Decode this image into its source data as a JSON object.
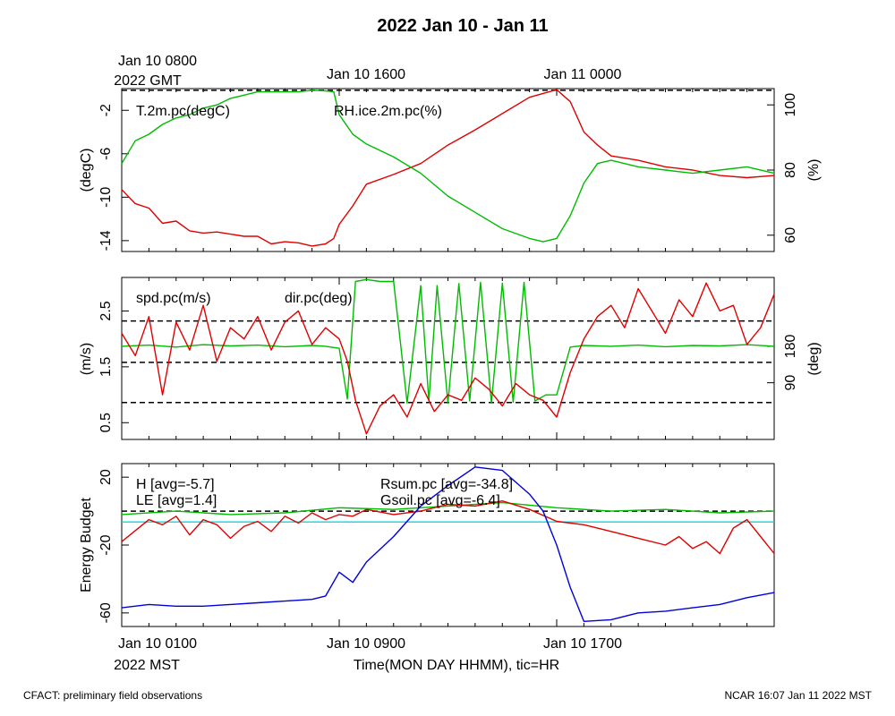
{
  "title": "2022 Jan 10 - Jan 11",
  "top_axis": {
    "gmt_first_line1": "Jan 10 0800",
    "gmt_first_line2": "2022 GMT",
    "gmt_mid": "Jan 10 1600",
    "gmt_last": "Jan 11 0000"
  },
  "bottom_axis": {
    "mst_first_line1": "Jan 10 0100",
    "mst_first_line2": "2022 MST",
    "mst_mid": "Jan 10 0900",
    "mst_last": "Jan 10 1700",
    "xlabel": "Time(MON DAY HHMM), tic=HR"
  },
  "footer": {
    "left": "CFACT: preliminary field observations",
    "right": "NCAR 16:07 Jan 11 2022 MST"
  },
  "colors": {
    "red": "#e00000",
    "green": "#00bb00",
    "blue": "#0000dd",
    "cyan": "#00dddd",
    "black": "#000000"
  },
  "chart_data": [
    {
      "type": "line",
      "panel": "temperature-rh",
      "x_unit": "hours since Jan 10 0100 MST",
      "xlim": [
        0,
        24
      ],
      "ylabel_left": "(degC)",
      "ylabel_right": "(%)",
      "ylim_left": [
        -15,
        0
      ],
      "ylim_right": [
        55,
        105
      ],
      "yticks_left": [
        -14,
        -10,
        -6,
        -2
      ],
      "yticks_right": [
        60,
        80,
        100
      ],
      "reference_lines_right": [
        104.5
      ],
      "series": [
        {
          "name": "T.2m.pc(degC)",
          "axis": "left",
          "color": "red",
          "x": [
            0,
            0.5,
            1,
            1.5,
            2,
            2.5,
            3,
            3.5,
            4,
            4.5,
            5,
            5.5,
            6,
            6.5,
            7,
            7.5,
            7.8,
            8,
            8.5,
            9,
            10,
            11,
            12,
            13,
            14,
            15,
            16,
            16.5,
            17,
            17.5,
            18,
            19,
            20,
            21,
            22,
            23,
            24
          ],
          "values": [
            -9.3,
            -10.6,
            -11.0,
            -12.4,
            -12.2,
            -13.1,
            -13.3,
            -13.2,
            -13.4,
            -13.6,
            -13.6,
            -14.3,
            -14.1,
            -14.2,
            -14.5,
            -14.3,
            -13.8,
            -12.5,
            -10.8,
            -8.8,
            -7.9,
            -6.9,
            -5.2,
            -3.8,
            -2.3,
            -0.8,
            -0.1,
            -1.2,
            -4.0,
            -5.2,
            -6.2,
            -6.6,
            -7.2,
            -7.5,
            -8.0,
            -8.2,
            -8.0
          ]
        },
        {
          "name": "RH.ice.2m.pc(%)",
          "axis": "right",
          "color": "green",
          "x": [
            0,
            0.5,
            1,
            1.5,
            2,
            2.5,
            3,
            3.5,
            4,
            4.5,
            5,
            5.5,
            6,
            6.5,
            7,
            7.5,
            7.8,
            8,
            8.5,
            9,
            10,
            11,
            12,
            13,
            14,
            15,
            15.5,
            16,
            16.5,
            17,
            17.5,
            18,
            19,
            20,
            21,
            22,
            23,
            24
          ],
          "values": [
            82,
            89,
            91,
            94,
            96,
            97,
            99,
            100,
            102,
            103,
            104,
            104,
            104,
            104,
            104.5,
            104.3,
            104,
            97,
            91,
            88,
            84,
            79,
            72,
            67,
            62,
            59,
            58,
            59,
            66,
            76,
            82,
            83,
            81,
            80,
            79,
            80,
            81,
            79
          ]
        }
      ]
    },
    {
      "type": "line",
      "panel": "wind",
      "x_unit": "hours since Jan 10 0100 MST",
      "xlim": [
        0,
        24
      ],
      "ylabel_left": "(m/s)",
      "ylabel_right": "(deg)",
      "ylim_left": [
        0.2,
        3.1
      ],
      "yticks_left": [
        0.5,
        1.5,
        2.5
      ],
      "yticks_right": [
        90,
        180
      ],
      "reference_lines_left": [
        0.86,
        1.58,
        2.32
      ],
      "series": [
        {
          "name": "spd.pc(m/s)",
          "axis": "left",
          "color": "red",
          "x": [
            0,
            0.5,
            1,
            1.5,
            2,
            2.5,
            3,
            3.5,
            4,
            4.5,
            5,
            5.5,
            6,
            6.5,
            7,
            7.5,
            8,
            8.3,
            8.6,
            9,
            9.5,
            10,
            10.5,
            11,
            11.5,
            12,
            12.5,
            13,
            13.5,
            14,
            14.5,
            15,
            15.5,
            16,
            16.5,
            17,
            17.5,
            18,
            18.5,
            19,
            19.5,
            20,
            20.5,
            21,
            21.5,
            22,
            22.5,
            23,
            23.5,
            24
          ],
          "values": [
            2.1,
            1.7,
            2.4,
            1.0,
            2.3,
            1.8,
            2.6,
            1.6,
            2.2,
            2.0,
            2.4,
            1.8,
            2.3,
            2.5,
            1.9,
            2.2,
            2.0,
            1.6,
            0.9,
            0.3,
            0.8,
            1.0,
            0.6,
            1.2,
            0.7,
            1.0,
            0.9,
            1.3,
            1.1,
            0.8,
            1.2,
            1.0,
            0.9,
            0.6,
            1.4,
            2.0,
            2.4,
            2.6,
            2.2,
            2.9,
            2.5,
            2.1,
            2.7,
            2.4,
            3.0,
            2.5,
            2.6,
            1.9,
            2.2,
            2.8
          ]
        },
        {
          "name": "dir.pc(deg)",
          "axis": "right",
          "color": "green",
          "x": [
            0,
            1,
            2,
            3,
            4,
            5,
            6,
            7,
            7.5,
            8,
            8.3,
            8.6,
            9,
            9.5,
            10,
            10.5,
            11,
            11.3,
            11.6,
            12,
            12.4,
            12.8,
            13.2,
            13.6,
            14,
            14.4,
            14.8,
            15.2,
            15.6,
            16,
            16.5,
            17,
            18,
            19,
            20,
            21,
            22,
            23,
            24
          ],
          "values": [
            180,
            183,
            178,
            184,
            181,
            183,
            179,
            182,
            180,
            175,
            50,
            340,
            345,
            340,
            340,
            40,
            330,
            45,
            330,
            40,
            335,
            45,
            338,
            40,
            336,
            42,
            338,
            45,
            60,
            60,
            178,
            182,
            180,
            183,
            179,
            182,
            181,
            184,
            180
          ]
        }
      ]
    },
    {
      "type": "line",
      "panel": "energy-budget",
      "x_unit": "hours since Jan 10 0100 MST",
      "xlim": [
        0,
        24
      ],
      "ylabel_left": "Energy Budget",
      "ylim_left": [
        -68,
        28
      ],
      "yticks_left": [
        -60,
        -20,
        20
      ],
      "reference_lines_left": [
        0
      ],
      "series": [
        {
          "name": "H",
          "legend": "H [avg=-5.7]",
          "color": "red",
          "x": [
            0,
            1,
            1.5,
            2,
            2.5,
            3,
            3.5,
            4,
            4.5,
            5,
            5.5,
            6,
            6.5,
            7,
            7.5,
            8,
            8.5,
            9,
            10,
            11,
            12,
            13,
            14,
            15,
            16,
            17,
            18,
            19,
            20,
            20.5,
            21,
            21.5,
            22,
            22.5,
            23,
            23.5,
            24
          ],
          "values": [
            -18,
            -5,
            -8,
            -3,
            -14,
            -5,
            -8,
            -16,
            -9,
            -6,
            -12,
            -3,
            -7,
            -1,
            -5,
            -2,
            -3,
            1,
            -2,
            0,
            4,
            3,
            6,
            1,
            -6,
            -8,
            -12,
            -16,
            -20,
            -15,
            -22,
            -18,
            -25,
            -10,
            -5,
            -15,
            -25
          ]
        },
        {
          "name": "LE",
          "legend": "LE [avg=1.4]",
          "color": "green",
          "x": [
            0,
            2,
            4,
            6,
            8,
            10,
            12,
            14,
            16,
            18,
            20,
            22,
            24
          ],
          "values": [
            -2,
            0,
            -2,
            -1,
            2,
            1,
            3,
            5,
            2,
            0,
            1,
            -1,
            0
          ]
        },
        {
          "name": "Rsum.pc",
          "legend": "Rsum.pc [avg=-34.8]",
          "color": "blue",
          "x": [
            0,
            1,
            2,
            3,
            4,
            5,
            6,
            7,
            7.5,
            8,
            8.5,
            9,
            10,
            11,
            12,
            13,
            14,
            15,
            15.5,
            16,
            16.5,
            17,
            18,
            19,
            20,
            21,
            22,
            23,
            24
          ],
          "values": [
            -57,
            -55,
            -56,
            -56,
            -55,
            -54,
            -53,
            -52,
            -50,
            -36,
            -42,
            -30,
            -15,
            3,
            15,
            26,
            24,
            10,
            0,
            -20,
            -45,
            -65,
            -64,
            -60,
            -59,
            -57,
            -55,
            -51,
            -48
          ]
        },
        {
          "name": "Gsoil.pc",
          "legend": "Gsoil.pc [avg=-6.4]",
          "color": "cyan",
          "x": [
            0,
            24
          ],
          "values": [
            -6.4,
            -6.4
          ]
        }
      ]
    }
  ]
}
